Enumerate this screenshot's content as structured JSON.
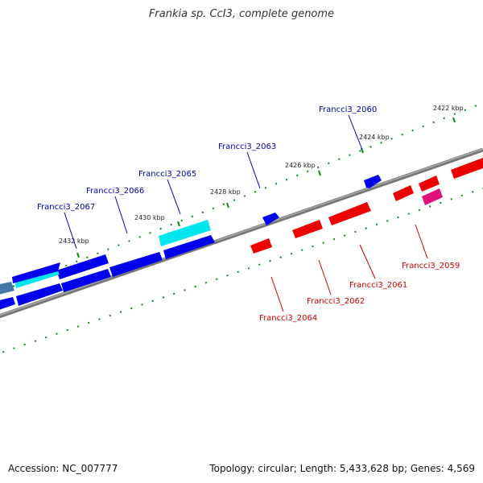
{
  "title": "Frankia sp. CcI3, complete genome",
  "footer": {
    "accession": "Accession: NC_007777",
    "summary": "Topology: circular; Length: 5,433,628 bp; Genes: 4,569"
  },
  "colors": {
    "forward_gene": "#0000ee",
    "forward_highlight": "#00e5ee",
    "forward_dim": "#4477aa",
    "reverse_gene": "#ee0000",
    "reverse_highlight": "#dd1177",
    "backbone": "#888888",
    "tick": "#118811",
    "forward_label": "#0000aa",
    "reverse_label": "#cc0000"
  },
  "scale_labels": [
    "2422 kbp",
    "2424 kbp",
    "2426 kbp",
    "2428 kbp",
    "2430 kbp",
    "2432 kbp"
  ],
  "forward_labels": [
    "Francci3_2060",
    "Francci3_2063",
    "Francci3_2065",
    "Francci3_2066",
    "Francci3_2067"
  ],
  "reverse_labels": [
    "Francci3_2059",
    "Francci3_2061",
    "Francci3_2062",
    "Francci3_2064"
  ]
}
